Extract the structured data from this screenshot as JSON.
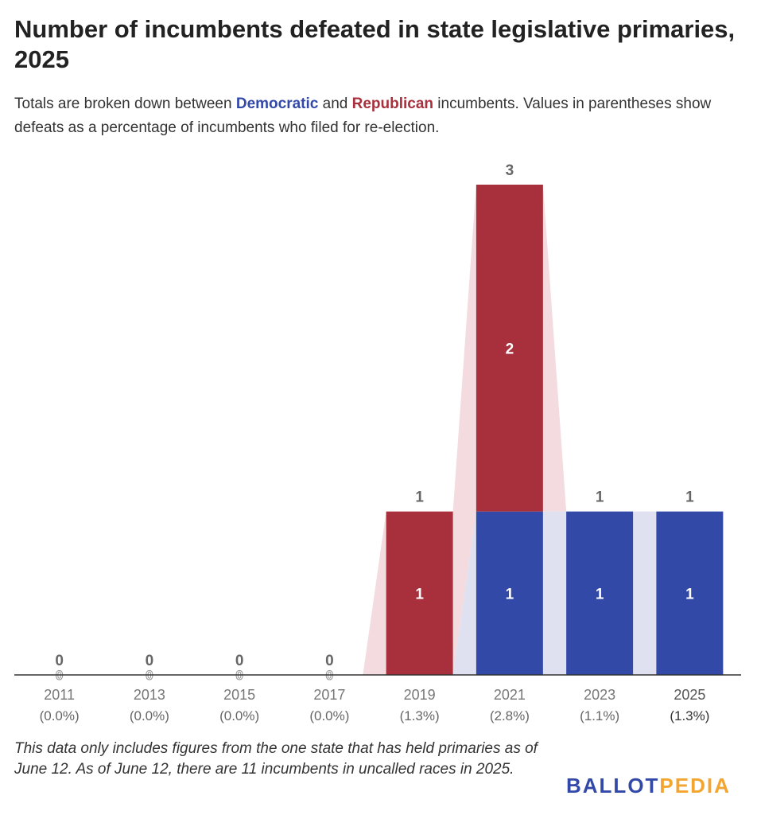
{
  "title": "Number of incumbents defeated in state legislative primaries, 2025",
  "subtitle": {
    "before": "Totals are broken down between ",
    "dem_word": "Democratic",
    "middle": " and ",
    "rep_word": "Republican",
    "after": " incumbents. Values in parentheses show defeats as a percentage of incumbents who filed for re-election."
  },
  "colors": {
    "democratic": "#3349a8",
    "republican": "#a8303d",
    "democratic_shade": "#dfe1f1",
    "republican_shade": "#f3dbdf",
    "axis": "#333333",
    "total_label": "#666666"
  },
  "chart_data": {
    "type": "bar",
    "stacked": true,
    "categories": [
      "2011",
      "2013",
      "2015",
      "2017",
      "2019",
      "2021",
      "2023",
      "2025"
    ],
    "percentages": [
      "(0.0%)",
      "(0.0%)",
      "(0.0%)",
      "(0.0%)",
      "(1.3%)",
      "(2.8%)",
      "(1.1%)",
      "(1.3%)"
    ],
    "series": [
      {
        "name": "Democratic",
        "values": [
          0,
          0,
          0,
          0,
          0,
          1,
          1,
          1
        ]
      },
      {
        "name": "Republican",
        "values": [
          0,
          0,
          0,
          0,
          1,
          2,
          0,
          0
        ]
      }
    ],
    "totals": [
      0,
      0,
      0,
      0,
      1,
      3,
      1,
      1
    ],
    "ylim": [
      0,
      3
    ]
  },
  "footnote": "This data only includes figures from the one state that has held primaries as of June 12. As of June 12, there are 11 incumbents in uncalled races in 2025.",
  "logo": {
    "part1": "BALLOT",
    "part2": "PEDIA"
  }
}
